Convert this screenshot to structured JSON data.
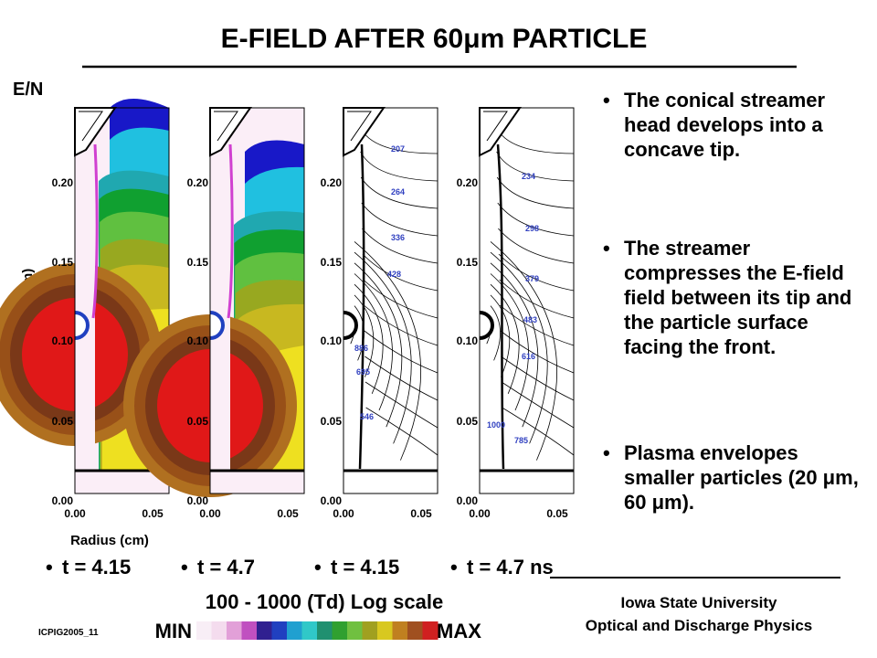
{
  "title": "E-FIELD AFTER 60μm PARTICLE",
  "quantity_label": "E/N",
  "y_axis_label": "Height (cm)",
  "x_axis_label": "Radius (cm)",
  "yticks": [
    "0.20",
    "0.15",
    "0.10",
    "0.05",
    "0.00"
  ],
  "xticks": [
    "0.00",
    "0.05"
  ],
  "panels": [
    {
      "time": "t = 4.15"
    },
    {
      "time": "t = 4.7"
    },
    {
      "time": "t = 4.15",
      "contour_labels": [
        "207",
        "264",
        "336",
        "428",
        "886",
        "695",
        "546"
      ]
    },
    {
      "time": "t = 4.7 ns",
      "contour_labels": [
        "234",
        "298",
        "379",
        "483",
        "616",
        "1000",
        "785"
      ]
    }
  ],
  "bullets": [
    "The conical streamer head develops  into a concave tip.",
    "The streamer compresses the E-field field between its tip and the particle surface facing the front.",
    "Plasma envelopes smaller particles (20 μm, 60 μm)."
  ],
  "legend": {
    "caption": "100 - 1000 (Td)  Log scale",
    "min": "MIN",
    "max": "MAX"
  },
  "footer": {
    "code": "ICPIG2005_11",
    "institution": "Iowa State University",
    "group": "Optical and Discharge Physics"
  }
}
